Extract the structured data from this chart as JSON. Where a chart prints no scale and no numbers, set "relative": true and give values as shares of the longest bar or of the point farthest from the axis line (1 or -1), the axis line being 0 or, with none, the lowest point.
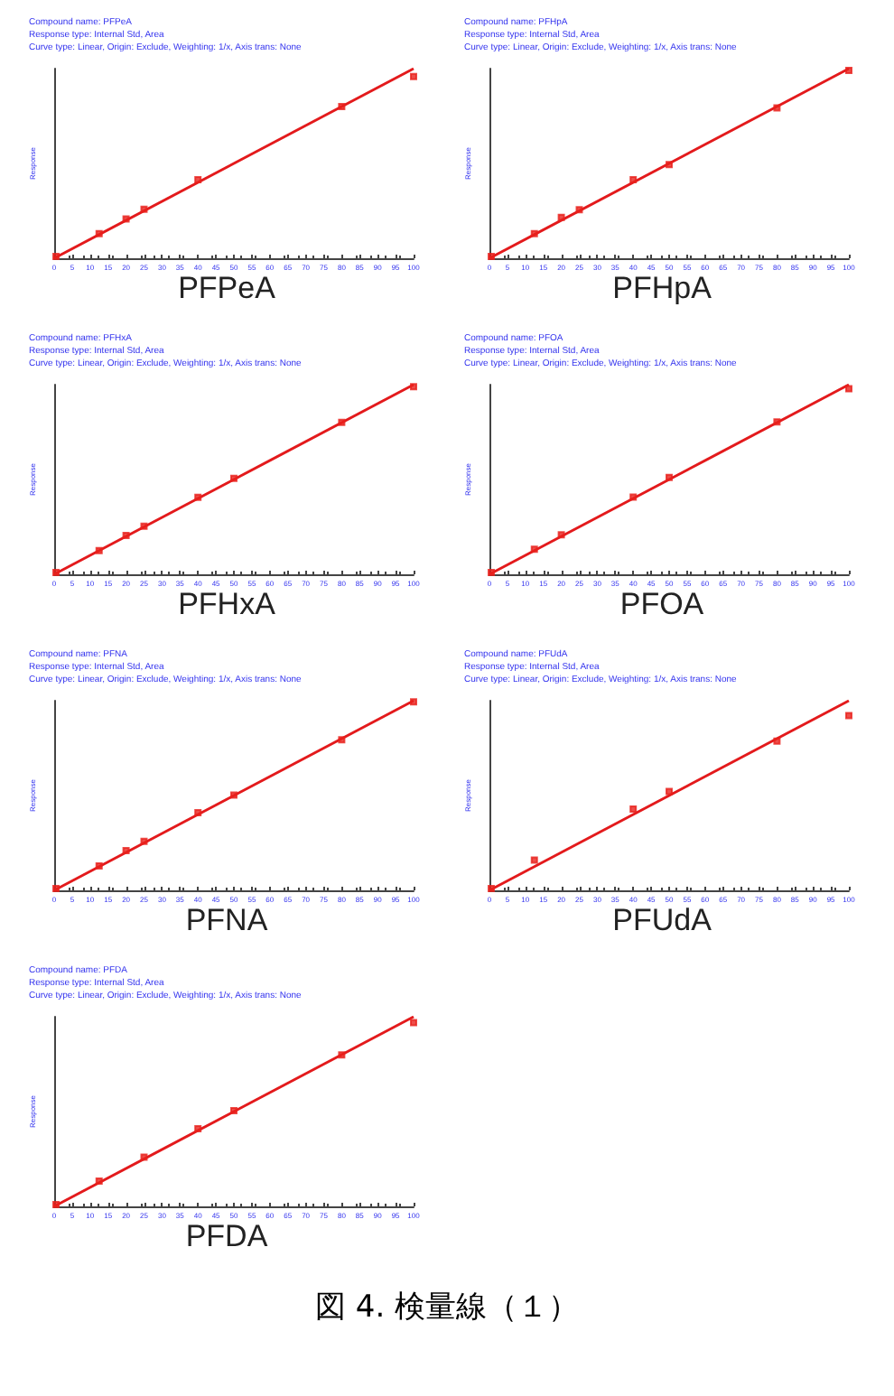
{
  "chart_data": [
    {
      "type": "scatter",
      "title": "PFPeA",
      "annotations": [
        "Compound name: PFPeA",
        "Response type: Internal Std, Area",
        "Curve type: Linear, Origin: Exclude, Weighting: 1/x, Axis trans: None"
      ],
      "ylabel": "Response",
      "relative": true,
      "xlim": [
        0,
        100
      ],
      "xticks": [
        0,
        5,
        10,
        15,
        20,
        25,
        30,
        35,
        40,
        45,
        50,
        55,
        60,
        65,
        70,
        75,
        80,
        85,
        90,
        95,
        100
      ],
      "tick_labels": "x",
      "grid": false,
      "marker": "square",
      "series": [
        {
          "type": "scatter",
          "color": "#e8201c",
          "x": [
            0.5,
            12.5,
            20,
            25,
            40,
            80,
            100
          ],
          "values": [
            0.01,
            0.13,
            0.207,
            0.258,
            0.414,
            0.8,
            0.958
          ]
        },
        {
          "type": "line",
          "color": "#e31a1c",
          "marker": "none",
          "x": [
            0,
            100
          ],
          "values": [
            0,
            1
          ]
        }
      ]
    },
    {
      "type": "scatter",
      "title": "PFHpA",
      "annotations": [
        "Compound name: PFHpA",
        "Response type: Internal Std, Area",
        "Curve type: Linear, Origin: Exclude, Weighting: 1/x, Axis trans: None"
      ],
      "ylabel": "Response",
      "relative": true,
      "xlim": [
        0,
        100
      ],
      "xticks": [
        0,
        5,
        10,
        15,
        20,
        25,
        30,
        35,
        40,
        45,
        50,
        55,
        60,
        65,
        70,
        75,
        80,
        85,
        90,
        95,
        100
      ],
      "tick_labels": "x",
      "grid": false,
      "marker": "square",
      "series": [
        {
          "type": "scatter",
          "color": "#e8201c",
          "x": [
            0.5,
            12.5,
            20,
            25,
            40,
            50,
            80,
            100
          ],
          "values": [
            0.01,
            0.13,
            0.216,
            0.256,
            0.414,
            0.494,
            0.793,
            0.991
          ]
        },
        {
          "type": "line",
          "color": "#e31a1c",
          "marker": "none",
          "x": [
            0,
            100
          ],
          "values": [
            0,
            1
          ]
        }
      ]
    },
    {
      "type": "scatter",
      "title": "PFHxA",
      "annotations": [
        "Compound name: PFHxA",
        "Response type: Internal Std, Area",
        "Curve type: Linear, Origin: Exclude, Weighting: 1/x, Axis trans: None"
      ],
      "ylabel": "Response",
      "relative": true,
      "xlim": [
        0,
        100
      ],
      "xticks": [
        0,
        5,
        10,
        15,
        20,
        25,
        30,
        35,
        40,
        45,
        50,
        55,
        60,
        65,
        70,
        75,
        80,
        85,
        90,
        95,
        100
      ],
      "tick_labels": "x",
      "grid": false,
      "marker": "square",
      "series": [
        {
          "type": "scatter",
          "color": "#e8201c",
          "x": [
            0.5,
            12.5,
            20,
            25,
            40,
            50,
            80,
            100
          ],
          "values": [
            0.01,
            0.125,
            0.205,
            0.253,
            0.406,
            0.506,
            0.801,
            0.989
          ]
        },
        {
          "type": "line",
          "color": "#e31a1c",
          "marker": "none",
          "x": [
            0,
            100
          ],
          "values": [
            0,
            1
          ]
        }
      ]
    },
    {
      "type": "scatter",
      "title": "PFOA",
      "annotations": [
        "Compound name: PFOA",
        "Response type: Internal Std, Area",
        "Curve type: Linear, Origin: Exclude, Weighting: 1/x, Axis trans: None"
      ],
      "ylabel": "Response",
      "relative": true,
      "xlim": [
        0,
        100
      ],
      "xticks": [
        0,
        5,
        10,
        15,
        20,
        25,
        30,
        35,
        40,
        45,
        50,
        55,
        60,
        65,
        70,
        75,
        80,
        85,
        90,
        95,
        100
      ],
      "tick_labels": "x",
      "grid": false,
      "marker": "square",
      "series": [
        {
          "type": "scatter",
          "color": "#e8201c",
          "x": [
            0.5,
            12.5,
            20,
            40,
            50,
            80,
            100
          ],
          "values": [
            0.01,
            0.132,
            0.208,
            0.407,
            0.511,
            0.804,
            0.978
          ]
        },
        {
          "type": "line",
          "color": "#e31a1c",
          "marker": "none",
          "x": [
            0,
            100
          ],
          "values": [
            0,
            1
          ]
        }
      ]
    },
    {
      "type": "scatter",
      "title": "PFNA",
      "annotations": [
        "Compound name: PFNA",
        "Response type: Internal Std, Area",
        "Curve type: Linear, Origin: Exclude, Weighting: 1/x, Axis trans: None"
      ],
      "ylabel": "Response",
      "relative": true,
      "xlim": [
        0,
        100
      ],
      "xticks": [
        0,
        5,
        10,
        15,
        20,
        25,
        30,
        35,
        40,
        45,
        50,
        55,
        60,
        65,
        70,
        75,
        80,
        85,
        90,
        95,
        100
      ],
      "tick_labels": "x",
      "grid": false,
      "marker": "square",
      "series": [
        {
          "type": "scatter",
          "color": "#e8201c",
          "x": [
            0.5,
            12.5,
            20,
            25,
            40,
            50,
            80,
            100
          ],
          "values": [
            0.01,
            0.129,
            0.209,
            0.258,
            0.409,
            0.502,
            0.794,
            0.994
          ]
        },
        {
          "type": "line",
          "color": "#e31a1c",
          "marker": "none",
          "x": [
            0,
            100
          ],
          "values": [
            0,
            1
          ]
        }
      ]
    },
    {
      "type": "scatter",
      "title": "PFUdA",
      "annotations": [
        "Compound name: PFUdA",
        "Response type: Internal Std, Area",
        "Curve type: Linear, Origin: Exclude, Weighting: 1/x, Axis trans: None"
      ],
      "ylabel": "Response",
      "relative": true,
      "xlim": [
        0,
        100
      ],
      "xticks": [
        0,
        5,
        10,
        15,
        20,
        25,
        30,
        35,
        40,
        45,
        50,
        55,
        60,
        65,
        70,
        75,
        80,
        85,
        90,
        95,
        100
      ],
      "tick_labels": "x",
      "grid": false,
      "marker": "square",
      "series": [
        {
          "type": "scatter",
          "color": "#e8201c",
          "x": [
            0.5,
            12.5,
            40,
            50,
            80,
            100
          ],
          "values": [
            0.01,
            0.16,
            0.429,
            0.521,
            0.787,
            0.922
          ]
        },
        {
          "type": "line",
          "color": "#e31a1c",
          "marker": "none",
          "x": [
            0,
            100
          ],
          "values": [
            0,
            1
          ]
        }
      ]
    },
    {
      "type": "scatter",
      "title": "PFDA",
      "annotations": [
        "Compound name: PFDA",
        "Response type: Internal Std, Area",
        "Curve type: Linear, Origin: Exclude, Weighting: 1/x, Axis trans: None"
      ],
      "ylabel": "Response",
      "relative": true,
      "xlim": [
        0,
        100
      ],
      "xticks": [
        0,
        5,
        10,
        15,
        20,
        25,
        30,
        35,
        40,
        45,
        50,
        55,
        60,
        65,
        70,
        75,
        80,
        85,
        90,
        95,
        100
      ],
      "tick_labels": "x",
      "grid": false,
      "marker": "square",
      "series": [
        {
          "type": "scatter",
          "color": "#e8201c",
          "x": [
            0.5,
            12.5,
            25,
            40,
            50,
            80,
            100
          ],
          "values": [
            0.01,
            0.133,
            0.26,
            0.409,
            0.505,
            0.799,
            0.969
          ]
        },
        {
          "type": "line",
          "color": "#e31a1c",
          "marker": "none",
          "x": [
            0,
            100
          ],
          "values": [
            0,
            1
          ]
        }
      ]
    },
    {
      "type": "other",
      "title": "図 4.  検量線（１）"
    }
  ]
}
